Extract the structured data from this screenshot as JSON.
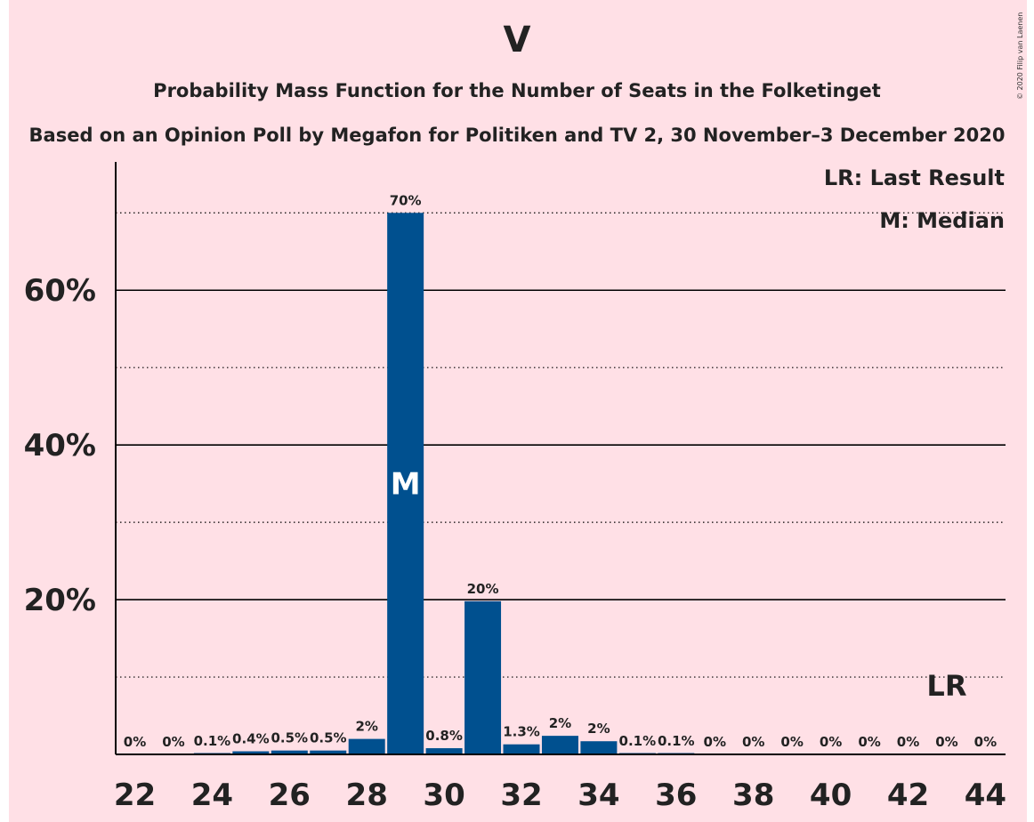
{
  "header": {
    "title": "V",
    "subtitle": "Probability Mass Function for the Number of Seats in the Folketinget",
    "subtitle2": "Based on an Opinion Poll by Megafon for Politiken and TV 2, 30 November–3 December 2020",
    "copyright": "© 2020 Filip van Laenen"
  },
  "legend": {
    "last_result": "LR: Last Result",
    "median": "M: Median"
  },
  "colors": {
    "bar": "#00508f",
    "background": "#ffe0e6",
    "text": "#222222"
  },
  "chart_data": {
    "type": "bar",
    "x": [
      22,
      23,
      24,
      25,
      26,
      27,
      28,
      29,
      30,
      31,
      32,
      33,
      34,
      35,
      36,
      37,
      38,
      39,
      40,
      41,
      42,
      43,
      44
    ],
    "values": [
      0,
      0,
      0.1,
      0.4,
      0.5,
      0.5,
      2,
      70,
      0.8,
      20,
      1.3,
      2,
      2,
      0.1,
      0.1,
      0,
      0,
      0,
      0,
      0,
      0,
      0,
      0
    ],
    "bar_heights_percent": [
      0,
      0,
      0.1,
      0.4,
      0.5,
      0.5,
      2.0,
      70.0,
      0.8,
      19.8,
      1.3,
      2.4,
      1.7,
      0.1,
      0.1,
      0,
      0,
      0,
      0,
      0,
      0,
      0,
      0
    ],
    "data_labels": [
      "0%",
      "0%",
      "0.1%",
      "0.4%",
      "0.5%",
      "0.5%",
      "2%",
      "70%",
      "0.8%",
      "20%",
      "1.3%",
      "2%",
      "2%",
      "0.1%",
      "0.1%",
      "0%",
      "0%",
      "0%",
      "0%",
      "0%",
      "0%",
      "0%",
      "0%"
    ],
    "x_ticks": [
      22,
      24,
      26,
      28,
      30,
      32,
      34,
      36,
      38,
      40,
      42,
      44
    ],
    "x_tick_labels": [
      "22",
      "24",
      "26",
      "28",
      "30",
      "32",
      "34",
      "36",
      "38",
      "40",
      "42",
      "44"
    ],
    "y_ticks": [
      20,
      40,
      60
    ],
    "y_tick_labels": [
      "20%",
      "40%",
      "60%"
    ],
    "y_minor_ticks": [
      10,
      30,
      50,
      70
    ],
    "ylim": [
      0,
      76
    ],
    "median_seat": 29,
    "median_label": "M",
    "last_result_seat": 43,
    "last_result_label": "LR",
    "grid": true
  }
}
